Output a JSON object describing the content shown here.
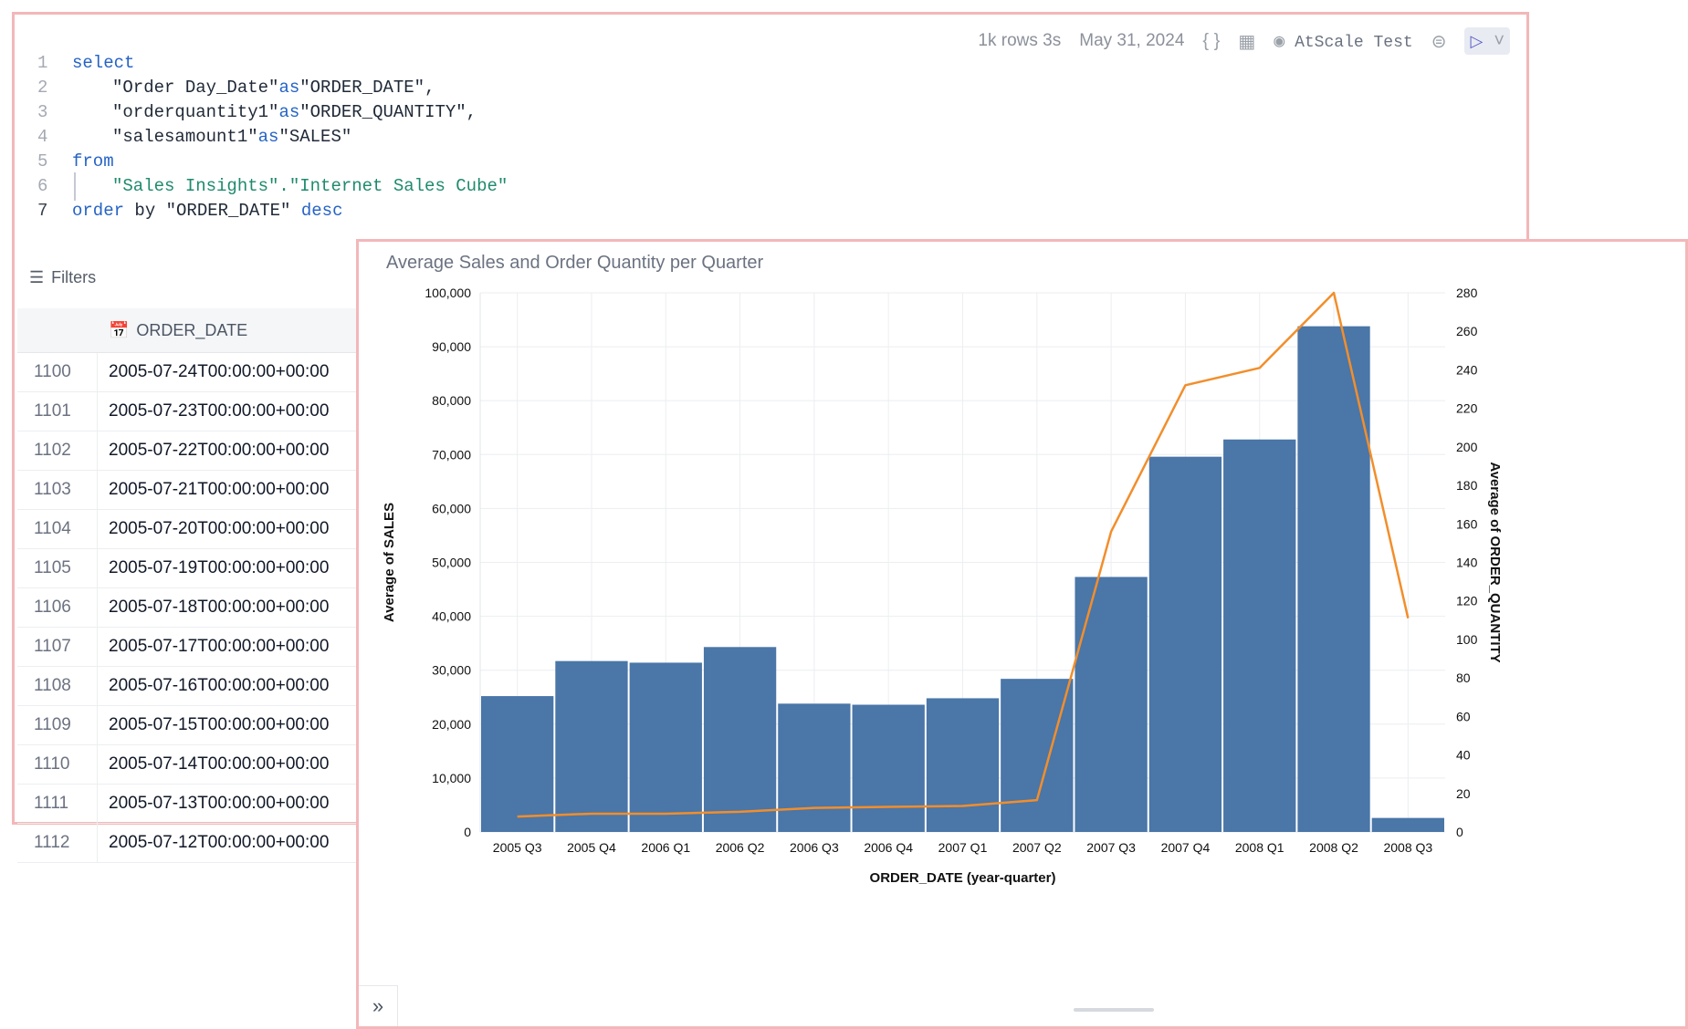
{
  "toolbar": {
    "rows": "1k rows",
    "duration": "3s",
    "date": "May 31, 2024",
    "connection": "AtScale Test"
  },
  "sql": {
    "lines": [
      "1",
      "2",
      "3",
      "4",
      "5",
      "6",
      "7"
    ],
    "kw_select": "select",
    "col1": "\"Order Day_Date\"",
    "alias1": "\"ORDER_DATE\",",
    "col2": "\"orderquantity1\"",
    "alias2": "\"ORDER_QUANTITY\",",
    "col3": "\"salesamount1\"",
    "alias3": "\"SALES\"",
    "kw_as": "as",
    "kw_from": "from",
    "table": "\"Sales Insights\".\"Internet Sales Cube\"",
    "kw_order": "order",
    "by": " by \"ORDER_DATE\" ",
    "kw_desc": "desc"
  },
  "filters_label": "Filters",
  "table": {
    "header": "ORDER_DATE",
    "rows": [
      {
        "n": "1100",
        "v": "2005-07-24T00:00:00+00:00"
      },
      {
        "n": "1101",
        "v": "2005-07-23T00:00:00+00:00"
      },
      {
        "n": "1102",
        "v": "2005-07-22T00:00:00+00:00"
      },
      {
        "n": "1103",
        "v": "2005-07-21T00:00:00+00:00"
      },
      {
        "n": "1104",
        "v": "2005-07-20T00:00:00+00:00"
      },
      {
        "n": "1105",
        "v": "2005-07-19T00:00:00+00:00"
      },
      {
        "n": "1106",
        "v": "2005-07-18T00:00:00+00:00"
      },
      {
        "n": "1107",
        "v": "2005-07-17T00:00:00+00:00"
      },
      {
        "n": "1108",
        "v": "2005-07-16T00:00:00+00:00"
      },
      {
        "n": "1109",
        "v": "2005-07-15T00:00:00+00:00"
      },
      {
        "n": "1110",
        "v": "2005-07-14T00:00:00+00:00"
      },
      {
        "n": "1111",
        "v": "2005-07-13T00:00:00+00:00"
      },
      {
        "n": "1112",
        "v": "2005-07-12T00:00:00+00:00"
      }
    ]
  },
  "chart_data": {
    "type": "bar",
    "title": "Average Sales and Order Quantity per Quarter",
    "xlabel": "ORDER_DATE (year-quarter)",
    "ylabel": "Average of SALES",
    "y2label": "Average of ORDER_QUANTITY",
    "categories": [
      "2005 Q3",
      "2005 Q4",
      "2006 Q1",
      "2006 Q2",
      "2006 Q3",
      "2006 Q4",
      "2007 Q1",
      "2007 Q2",
      "2007 Q3",
      "2007 Q4",
      "2008 Q1",
      "2008 Q2",
      "2008 Q3"
    ],
    "ylim": [
      0,
      100000
    ],
    "y2lim": [
      0,
      280
    ],
    "yticks": [
      "0",
      "10,000",
      "20,000",
      "30,000",
      "40,000",
      "50,000",
      "60,000",
      "70,000",
      "80,000",
      "90,000",
      "100,000"
    ],
    "y2ticks": [
      "0",
      "20",
      "40",
      "60",
      "80",
      "100",
      "120",
      "140",
      "160",
      "180",
      "200",
      "220",
      "240",
      "260",
      "280"
    ],
    "grid": true,
    "series": [
      {
        "name": "Average of SALES",
        "kind": "bar",
        "axis": "left",
        "color": "#4a76a8",
        "values": [
          25200,
          31700,
          31400,
          34300,
          23800,
          23600,
          24800,
          28400,
          47300,
          69600,
          72800,
          93800,
          2600
        ]
      },
      {
        "name": "Average of ORDER_QUANTITY",
        "kind": "line",
        "axis": "right",
        "color": "#f28e2b",
        "values": [
          8,
          9.5,
          9.5,
          10.5,
          12.5,
          13,
          13.5,
          16.5,
          156,
          232,
          241,
          280,
          111
        ]
      }
    ]
  }
}
